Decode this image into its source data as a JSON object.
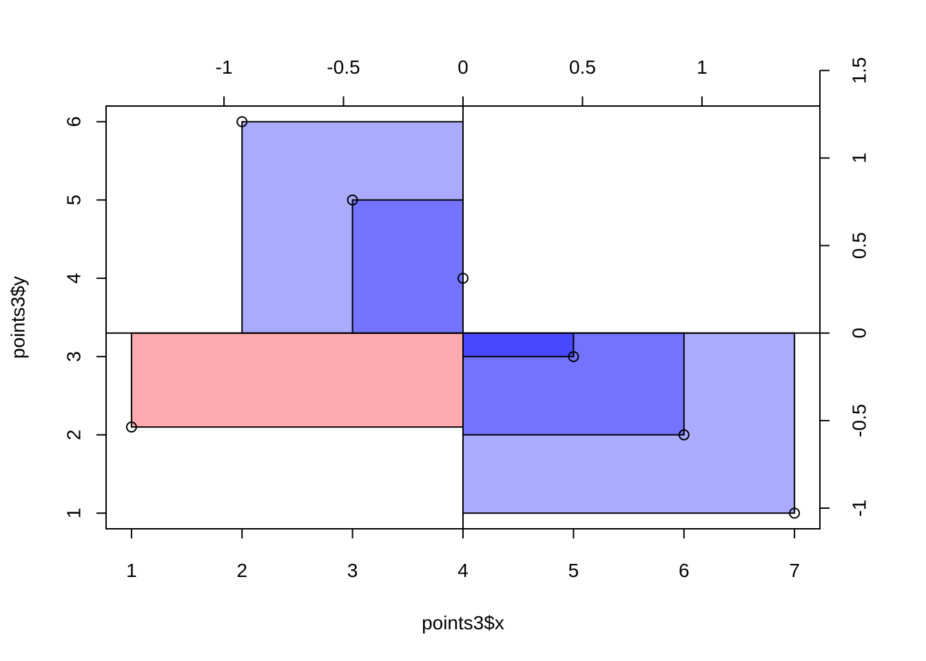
{
  "chart_data": {
    "type": "scatter",
    "title": "",
    "xlabel": "points3$x",
    "ylabel": "points3$y",
    "xlim": [
      0.77,
      7.23
    ],
    "ylim": [
      0.8,
      6.2
    ],
    "x_ticks": [
      1,
      2,
      3,
      4,
      5,
      6,
      7
    ],
    "y_ticks": [
      1,
      2,
      3,
      4,
      5,
      6
    ],
    "top_axis": {
      "ticks": [
        -1,
        -0.5,
        0,
        0.5,
        1
      ],
      "tick_labels": [
        "-1",
        "-0.5",
        "0",
        "0.5",
        "1"
      ],
      "x_at_zero": 4,
      "x_units_per_tick_unit": 2.163
    },
    "right_axis": {
      "ticks": [
        -1,
        -0.5,
        0,
        0.5,
        1,
        1.5
      ],
      "tick_labels": [
        "-1",
        "-0.5",
        "0",
        "0.5",
        "1",
        "1.5"
      ],
      "y_at_zero": 3.3,
      "y_units_per_tick_unit": 2.236
    },
    "reference_lines": {
      "vertical_x": 4,
      "horizontal_y": 3.3
    },
    "points": [
      {
        "x": 1,
        "y": 2.1
      },
      {
        "x": 2,
        "y": 6
      },
      {
        "x": 3,
        "y": 5
      },
      {
        "x": 4,
        "y": 4
      },
      {
        "x": 5,
        "y": 3
      },
      {
        "x": 6,
        "y": 2
      },
      {
        "x": 7,
        "y": 1
      }
    ],
    "rectangles": [
      {
        "x0": 1,
        "y0": 2.1,
        "x1": 4,
        "y1": 3.3,
        "fill": "#ffaaaf"
      },
      {
        "x0": 2,
        "y0": 3.3,
        "x1": 4,
        "y1": 6,
        "fill": "#aaaaff"
      },
      {
        "x0": 3,
        "y0": 3.3,
        "x1": 4,
        "y1": 5,
        "fill": "#7373ff"
      },
      {
        "x0": 4,
        "y0": 1,
        "x1": 7,
        "y1": 3.3,
        "fill": "#aaaaff"
      },
      {
        "x0": 4,
        "y0": 2,
        "x1": 6,
        "y1": 3.3,
        "fill": "#7373ff"
      },
      {
        "x0": 4,
        "y0": 3,
        "x1": 5,
        "y1": 3.3,
        "fill": "#4848ff"
      }
    ],
    "grid": false,
    "legend": "none"
  }
}
